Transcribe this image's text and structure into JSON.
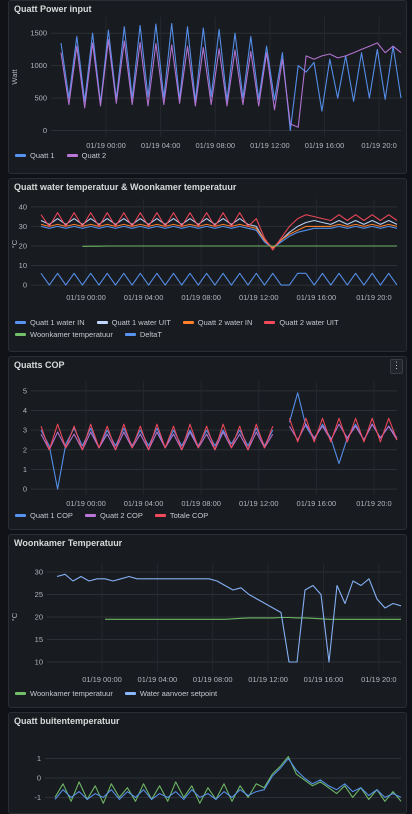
{
  "panels": [
    {
      "title": "Quatt Power input",
      "chart_data": {
        "type": "line",
        "ylabel": "Watt",
        "yticks": [
          0,
          500,
          1000,
          1500
        ],
        "ylim": [
          -100,
          1750
        ],
        "xticks": [
          "01/19 00:00",
          "01/19 04:00",
          "01/19 08:00",
          "01/19 12:00",
          "01/19 16:00",
          "01/19 20:0"
        ],
        "series": [
          {
            "name": "Quatt 1",
            "color": "#5794f2",
            "values": [
              1350,
              500,
              1450,
              450,
              1500,
              420,
              1550,
              480,
              1600,
              500,
              1620,
              520,
              1640,
              500,
              1650,
              480,
              1600,
              450,
              1580,
              520,
              1560,
              460,
              1500,
              500,
              1450,
              480,
              1300,
              470,
              1200,
              0,
              1000,
              900,
              1050,
              300,
              1100,
              500,
              1150,
              450,
              1200,
              500,
              1250,
              480,
              1300,
              500
            ]
          },
          {
            "name": "Quatt 2",
            "color": "#b877d9",
            "values": [
              1200,
              400,
              1300,
              350,
              1350,
              380,
              1400,
              420,
              1380,
              400,
              1360,
              380,
              1340,
              400,
              1320,
              420,
              1300,
              380,
              1280,
              400,
              1260,
              380,
              1240,
              400,
              1220,
              380,
              1200,
              320,
              1100,
              100,
              50,
              1150,
              1100,
              1150,
              1180,
              1120,
              1150,
              1200,
              1250,
              1300,
              1350,
              1200,
              1300,
              1200
            ]
          }
        ]
      },
      "legend": [
        {
          "label": "Quatt 1",
          "color": "#5794f2"
        },
        {
          "label": "Quatt 2",
          "color": "#b877d9"
        }
      ]
    },
    {
      "title": "Quatt water temperatuur & Woonkamer temperatuur",
      "chart_data": {
        "type": "line",
        "ylabel": "°C",
        "yticks": [
          0,
          10,
          20,
          30,
          40
        ],
        "ylim": [
          -2,
          44
        ],
        "xticks": [
          "01/19 00:00",
          "01/19 04:00",
          "01/19 08:00",
          "01/19 12:00",
          "01/19 16:00",
          "01/19 20:0"
        ],
        "series": [
          {
            "name": "Quatt 1 water IN",
            "color": "#5794f2",
            "values": [
              30,
              29,
              30,
              29,
              30,
              29,
              30,
              29,
              30,
              29,
              30,
              29,
              30,
              29,
              30,
              29,
              30,
              29,
              30,
              29,
              30,
              29,
              30,
              29,
              30,
              29,
              28,
              22,
              19,
              22,
              25,
              27,
              28,
              29,
              29,
              29,
              30,
              29,
              30,
              29,
              30,
              29,
              30,
              29
            ]
          },
          {
            "name": "Quatt 1 water UIT",
            "color": "#c0d8ff",
            "values": [
              33,
              31,
              34,
              31,
              34,
              31,
              34,
              31,
              34,
              31,
              34,
              31,
              34,
              31,
              34,
              31,
              34,
              31,
              34,
              31,
              34,
              31,
              34,
              31,
              34,
              31,
              30,
              23,
              19,
              23,
              27,
              30,
              32,
              33,
              32,
              31,
              33,
              31,
              33,
              31,
              33,
              31,
              33,
              31
            ]
          },
          {
            "name": "Quatt 2 water IN",
            "color": "#ff7f2a",
            "values": [
              31,
              30,
              31,
              30,
              31,
              30,
              31,
              30,
              31,
              30,
              31,
              30,
              31,
              30,
              31,
              30,
              31,
              30,
              31,
              30,
              31,
              30,
              31,
              30,
              31,
              30,
              29,
              23,
              19,
              23,
              26,
              28,
              30,
              30,
              30,
              30,
              31,
              30,
              31,
              30,
              31,
              30,
              31,
              30
            ]
          },
          {
            "name": "Quatt 2 water UIT",
            "color": "#f2495c",
            "values": [
              36,
              30,
              37,
              30,
              37,
              30,
              37,
              30,
              37,
              30,
              37,
              30,
              37,
              30,
              37,
              30,
              37,
              30,
              37,
              30,
              37,
              30,
              37,
              30,
              37,
              30,
              34,
              24,
              18,
              24,
              30,
              34,
              36,
              35,
              34,
              33,
              36,
              33,
              36,
              33,
              36,
              33,
              36,
              33
            ]
          },
          {
            "name": "Woonkamer temperatuur",
            "color": "#73bf69",
            "values": [
              null,
              null,
              null,
              null,
              null,
              19.8,
              19.9,
              19.9,
              20,
              20,
              20,
              20,
              20,
              20,
              20,
              20,
              20,
              20,
              20,
              20,
              20,
              20,
              20,
              20,
              20,
              20,
              20,
              20,
              20,
              20,
              20,
              20,
              20,
              20,
              20,
              20,
              20,
              20,
              20,
              20,
              20,
              20,
              20,
              20
            ]
          },
          {
            "name": "DeltaT",
            "color": "#5794f2",
            "values": [
              6,
              0,
              6,
              0,
              6,
              0,
              6,
              0,
              6,
              0,
              6,
              0,
              6,
              0,
              6,
              0,
              6,
              0,
              6,
              0,
              6,
              0,
              6,
              0,
              6,
              0,
              6,
              0,
              6,
              0,
              0,
              6,
              6,
              0,
              6,
              0,
              6,
              0,
              6,
              0,
              6,
              0,
              6,
              0
            ]
          }
        ]
      },
      "legend": [
        {
          "label": "Quatt 1 water IN",
          "color": "#5794f2"
        },
        {
          "label": "Quatt 1 water UIT",
          "color": "#c0d8ff"
        },
        {
          "label": "Quatt 2 water IN",
          "color": "#ff7f2a"
        },
        {
          "label": "Quatt 2 water UIT",
          "color": "#f2495c"
        },
        {
          "label": "Woonkamer temperatuur",
          "color": "#73bf69"
        },
        {
          "label": "DeltaT",
          "color": "#5794f2"
        }
      ]
    },
    {
      "title": "Quatts COP",
      "menu_icon": "kebab-icon",
      "chart_data": {
        "type": "line",
        "yticks": [
          0,
          1,
          2,
          3,
          4,
          5
        ],
        "ylim": [
          -0.3,
          5.5
        ],
        "xticks": [
          "01/19 00:00",
          "01/19 04:00",
          "01/19 08:00",
          "01/19 12:00",
          "01/19 16:00",
          "01/19 20:0"
        ],
        "series": [
          {
            "name": "Quatt 1 COP",
            "color": "#5794f2",
            "values": [
              3.0,
              2.2,
              0,
              2.3,
              3.1,
              2.2,
              3.1,
              2.1,
              3.0,
              2.2,
              3.1,
              2.2,
              3.0,
              2.2,
              3.1,
              2.1,
              3.0,
              2.2,
              3.0,
              2.2,
              3.0,
              2.2,
              3.0,
              2.3,
              3.0,
              2.2,
              3.1,
              2.2,
              3.0,
              null,
              3.4,
              4.9,
              3.2,
              2.5,
              3.3,
              2.6,
              1.3,
              2.6,
              3.3,
              2.5,
              3.3,
              2.6,
              3.2,
              2.6
            ]
          },
          {
            "name": "Quatt 2 COP",
            "color": "#b877d9",
            "values": [
              2.8,
              2.0,
              2.9,
              2.1,
              2.8,
              2.0,
              2.9,
              2.1,
              2.8,
              2.0,
              2.9,
              2.1,
              2.8,
              2.0,
              2.9,
              2.1,
              2.8,
              2.0,
              2.9,
              2.1,
              2.8,
              2.0,
              2.9,
              2.1,
              2.8,
              2.0,
              2.9,
              2.1,
              2.8,
              null,
              3.2,
              2.5,
              3.3,
              2.6,
              3.2,
              2.5,
              3.3,
              2.6,
              3.2,
              2.5,
              3.3,
              2.6,
              3.2,
              2.5
            ]
          },
          {
            "name": "Totale COP",
            "color": "#f2495c",
            "values": [
              3.2,
              2.0,
              3.3,
              2.1,
              3.2,
              2.0,
              3.3,
              2.1,
              3.2,
              2.0,
              3.3,
              2.1,
              3.2,
              2.0,
              3.3,
              2.1,
              3.2,
              2.0,
              3.3,
              2.1,
              3.2,
              2.0,
              3.3,
              2.1,
              3.2,
              2.0,
              3.3,
              2.1,
              3.2,
              null,
              3.6,
              2.4,
              3.6,
              2.4,
              3.6,
              2.4,
              3.6,
              2.4,
              3.6,
              2.4,
              3.6,
              2.4,
              3.6,
              2.5
            ]
          }
        ]
      },
      "legend": [
        {
          "label": "Quatt 1 COP",
          "color": "#5794f2"
        },
        {
          "label": "Quatt 2 COP",
          "color": "#b877d9"
        },
        {
          "label": "Totale COP",
          "color": "#f2495c"
        }
      ]
    },
    {
      "title": "Woonkamer Temperatuur",
      "chart_data": {
        "type": "line",
        "ylabel": "°C",
        "yticks": [
          10,
          15,
          20,
          25,
          30
        ],
        "ylim": [
          8,
          32
        ],
        "xticks": [
          "01/19 00:00",
          "01/19 04:00",
          "01/19 08:00",
          "01/19 12:00",
          "01/19 16:00",
          "01/19 20:0"
        ],
        "series": [
          {
            "name": "Woonkamer temperatuur",
            "color": "#73bf69",
            "values": [
              null,
              null,
              null,
              null,
              null,
              null,
              19.5,
              19.5,
              19.5,
              19.5,
              19.5,
              19.5,
              19.5,
              19.5,
              19.5,
              19.5,
              19.5,
              19.5,
              19.5,
              19.5,
              19.5,
              19.5,
              19.6,
              19.7,
              19.8,
              19.8,
              19.8,
              19.8,
              19.9,
              19.9,
              19.8,
              19.8,
              19.7,
              19.6,
              19.5,
              19.5,
              19.5,
              19.5,
              19.5,
              19.5,
              19.5,
              19.5,
              19.5,
              19.5
            ]
          },
          {
            "name": "Water aanvoer setpoint",
            "color": "#8ab8ff",
            "values": [
              29,
              29.5,
              28,
              29,
              28,
              28.5,
              28.5,
              28,
              28.5,
              29,
              28.5,
              28.5,
              28.5,
              28.5,
              28.5,
              28.5,
              28.5,
              28.5,
              28.5,
              28.5,
              28,
              27,
              26,
              26.5,
              25,
              24,
              23,
              22,
              21,
              10,
              10,
              26,
              27,
              25,
              10,
              27,
              23,
              28,
              27,
              28.5,
              24,
              22,
              23,
              22.5
            ]
          }
        ]
      },
      "legend": [
        {
          "label": "Woonkamer temperatuur",
          "color": "#73bf69"
        },
        {
          "label": "Water aanvoer setpoint",
          "color": "#8ab8ff"
        }
      ]
    },
    {
      "title": "Quatt buitentemperatuur",
      "chart_data": {
        "type": "line",
        "yticks": [
          1,
          0,
          -1
        ],
        "ylim": [
          -1.8,
          1.8
        ],
        "series": [
          {
            "name": "",
            "color": "#73bf69",
            "values": [
              -1,
              -0.3,
              -1.2,
              -0.2,
              -1.1,
              -0.4,
              -1.3,
              -0.3,
              -1.0,
              -0.5,
              -1.2,
              -0.3,
              -1.1,
              -0.4,
              -1.2,
              -0.2,
              -1.0,
              -0.4,
              -1.3,
              -0.5,
              -1.1,
              -0.3,
              -1.2,
              -0.4,
              -1.0,
              -0.3,
              -0.5,
              0.2,
              0.6,
              1.1,
              0.2,
              -0.1,
              -0.4,
              -0.2,
              -0.5,
              -0.8,
              -0.4,
              -1.0,
              -0.5,
              -1.1,
              -0.6,
              -1.2,
              -0.7,
              -1.2
            ]
          },
          {
            "name": "",
            "color": "#5794f2",
            "values": [
              -1.1,
              -0.6,
              -1.0,
              -0.7,
              -1.1,
              -0.8,
              -1.0,
              -0.6,
              -1.1,
              -0.7,
              -1.0,
              -0.6,
              -1.1,
              -0.8,
              -1.0,
              -0.7,
              -1.1,
              -0.6,
              -1.0,
              -0.8,
              -1.1,
              -0.7,
              -1.0,
              -0.6,
              -0.9,
              -0.7,
              -0.6,
              0.1,
              0.5,
              1.0,
              0.4,
              0.0,
              -0.3,
              -0.1,
              -0.4,
              -0.6,
              -0.3,
              -0.7,
              -0.5,
              -0.9,
              -0.6,
              -1.0,
              -0.8,
              -1.0
            ]
          }
        ]
      }
    }
  ]
}
